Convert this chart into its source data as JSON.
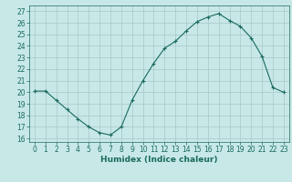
{
  "x": [
    0,
    1,
    2,
    3,
    4,
    5,
    6,
    7,
    8,
    9,
    10,
    11,
    12,
    13,
    14,
    15,
    16,
    17,
    18,
    19,
    20,
    21,
    22,
    23
  ],
  "y": [
    20.1,
    20.1,
    19.3,
    18.5,
    17.7,
    17.0,
    16.5,
    16.3,
    17.0,
    19.3,
    21.0,
    22.5,
    23.8,
    24.4,
    25.3,
    26.1,
    26.5,
    26.8,
    26.2,
    25.7,
    24.7,
    23.1,
    20.4,
    20.0
  ],
  "line_color": "#1a6b5a",
  "marker": "+",
  "marker_size": 3,
  "bg_color": "#c8e8e8",
  "grid_color": "#a8c8c8",
  "xlabel": "Humidex (Indice chaleur)",
  "xlim": [
    -0.5,
    23.5
  ],
  "ylim": [
    15.7,
    27.5
  ],
  "yticks": [
    16,
    17,
    18,
    19,
    20,
    21,
    22,
    23,
    24,
    25,
    26,
    27
  ],
  "xticks": [
    0,
    1,
    2,
    3,
    4,
    5,
    6,
    7,
    8,
    9,
    10,
    11,
    12,
    13,
    14,
    15,
    16,
    17,
    18,
    19,
    20,
    21,
    22,
    23
  ],
  "tick_labelsize": 5.5,
  "xlabel_fontsize": 6.5
}
